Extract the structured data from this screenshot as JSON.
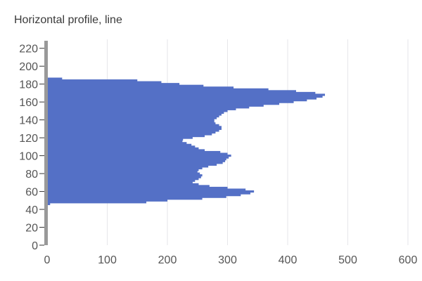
{
  "chart_data": {
    "type": "bar",
    "orientation": "horizontal",
    "title": "Horizontal profile, line",
    "xlabel": "",
    "ylabel": "",
    "xlim": [
      0,
      600
    ],
    "ylim": [
      0,
      230
    ],
    "x_ticks": [
      0,
      100,
      200,
      300,
      400,
      500,
      600
    ],
    "y_ticks": [
      0,
      20,
      40,
      60,
      80,
      100,
      120,
      140,
      160,
      180,
      200,
      220
    ],
    "grid": "vertical",
    "legend": "none",
    "bar_color": "#5470c6",
    "axis_strip_color": "#999999",
    "series": [
      {
        "y": [
          46,
          48,
          50,
          52,
          54,
          56,
          58,
          60,
          62,
          64,
          66,
          68,
          70,
          72,
          74,
          76,
          78,
          80,
          82,
          84,
          86,
          88,
          90,
          92,
          94,
          96,
          98,
          100,
          102,
          104,
          106,
          108,
          110,
          112,
          114,
          116,
          118,
          120,
          122,
          124,
          126,
          128,
          130,
          132,
          134,
          136,
          138,
          140,
          142,
          144,
          146,
          148,
          150,
          152,
          154,
          156,
          158,
          160,
          162,
          164,
          166,
          168,
          170,
          172,
          174,
          176,
          178,
          180,
          182,
          184,
          186
        ],
        "values": [
          5,
          165,
          200,
          258,
          298,
          322,
          338,
          344,
          330,
          300,
          270,
          252,
          242,
          246,
          252,
          256,
          258,
          254,
          250,
          252,
          258,
          268,
          282,
          292,
          296,
          298,
          302,
          306,
          300,
          288,
          262,
          252,
          246,
          240,
          232,
          225,
          226,
          242,
          262,
          274,
          280,
          286,
          290,
          290,
          286,
          280,
          278,
          278,
          282,
          286,
          290,
          294,
          300,
          314,
          336,
          360,
          386,
          410,
          432,
          448,
          458,
          462,
          446,
          414,
          368,
          310,
          260,
          220,
          190,
          150,
          25
        ]
      }
    ]
  }
}
